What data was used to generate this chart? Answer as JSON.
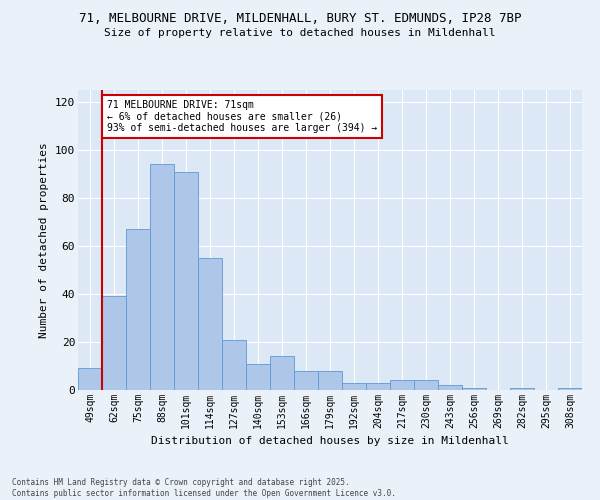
{
  "title1": "71, MELBOURNE DRIVE, MILDENHALL, BURY ST. EDMUNDS, IP28 7BP",
  "title2": "Size of property relative to detached houses in Mildenhall",
  "xlabel": "Distribution of detached houses by size in Mildenhall",
  "ylabel": "Number of detached properties",
  "categories": [
    "49sqm",
    "62sqm",
    "75sqm",
    "88sqm",
    "101sqm",
    "114sqm",
    "127sqm",
    "140sqm",
    "153sqm",
    "166sqm",
    "179sqm",
    "192sqm",
    "204sqm",
    "217sqm",
    "230sqm",
    "243sqm",
    "256sqm",
    "269sqm",
    "282sqm",
    "295sqm",
    "308sqm"
  ],
  "values": [
    9,
    39,
    67,
    94,
    91,
    55,
    21,
    11,
    14,
    8,
    8,
    3,
    3,
    4,
    4,
    2,
    1,
    0,
    1,
    0,
    1
  ],
  "bar_color": "#aec6e8",
  "bar_edge_color": "#5b9bd5",
  "vline_color": "#cc0000",
  "annotation_text": "71 MELBOURNE DRIVE: 71sqm\n← 6% of detached houses are smaller (26)\n93% of semi-detached houses are larger (394) →",
  "annotation_box_edge_color": "#cc0000",
  "ylim": [
    0,
    125
  ],
  "yticks": [
    0,
    20,
    40,
    60,
    80,
    100,
    120
  ],
  "background_color": "#dce8f5",
  "grid_color": "#ffffff",
  "fig_bg_color": "#eaf1f8",
  "footer1": "Contains HM Land Registry data © Crown copyright and database right 2025.",
  "footer2": "Contains public sector information licensed under the Open Government Licence v3.0."
}
